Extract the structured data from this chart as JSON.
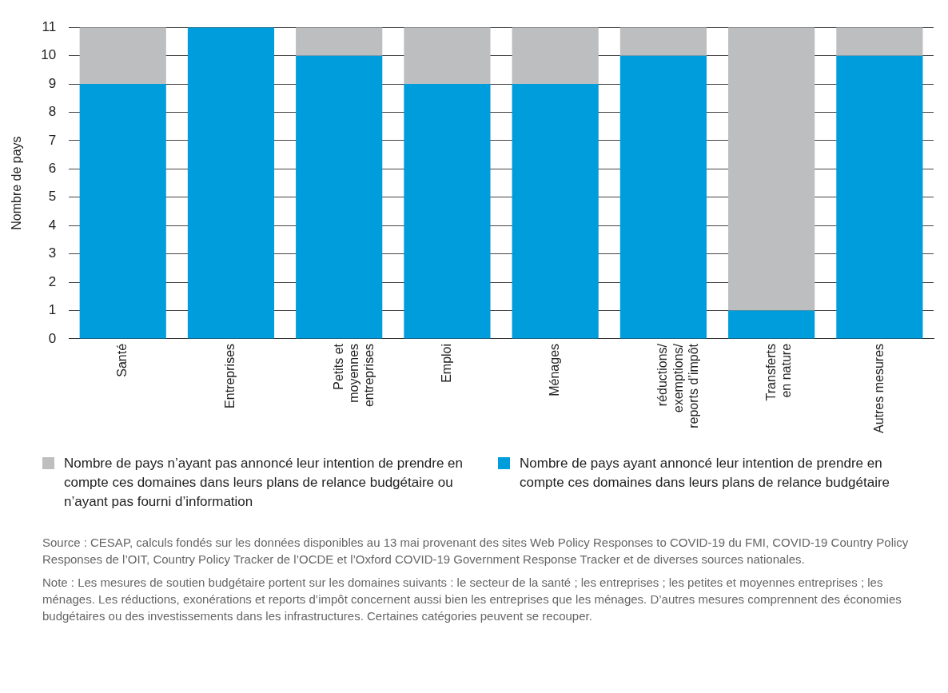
{
  "chart_data": {
    "type": "bar",
    "stacked": true,
    "ylabel": "Nombre de pays",
    "categories": [
      "Santé",
      "Entreprises",
      "Petits et\nmoyennes\nentreprises",
      "Emploi",
      "Ménages",
      "réductions/\nexemptions/\nreports d’impôt",
      "Transferts\nen nature",
      "Autres mesures"
    ],
    "series": [
      {
        "name": "Nombre de pays ayant annoncé leur intention de prendre en compte ces domaines dans leurs plans de relance budgétaire",
        "color": "#009ddc",
        "values": [
          9,
          11,
          10,
          9,
          9,
          10,
          1,
          10
        ]
      },
      {
        "name": "Nombre de pays n’ayant pas annoncé leur intention de prendre en compte ces domaines dans leurs plans de relance budgétaire ou n’ayant pas fourni d’information",
        "color": "#bcbec0",
        "values": [
          2,
          0,
          1,
          2,
          2,
          1,
          10,
          1
        ]
      }
    ],
    "ylim": [
      0,
      11
    ],
    "yticks": [
      0,
      1,
      2,
      3,
      4,
      5,
      6,
      7,
      8,
      9,
      10,
      11
    ],
    "grid": "y",
    "legend": "bottom",
    "annotations": [
      "Source : CESAP, calculs fondés sur les données disponibles au 13 mai provenant des sites Web Policy Responses to COVID-19 du FMI, COVID-19 Country Policy Responses de l’OIT, Country Policy Tracker de l’OCDE et l’Oxford COVID-19 Government Response Tracker et de diverses sources nationales.",
      "Note : Les mesures de soutien budgétaire portent sur les domaines suivants : le secteur de la santé ; les entreprises ; les petites et moyennes entreprises ; les ménages. Les réductions, exonérations et reports d’impôt concernent aussi bien les entreprises que les ménages. D’autres mesures comprennent des économies budgétaires ou des investissements dans les infrastructures. Certaines catégories peuvent se recouper."
    ]
  }
}
